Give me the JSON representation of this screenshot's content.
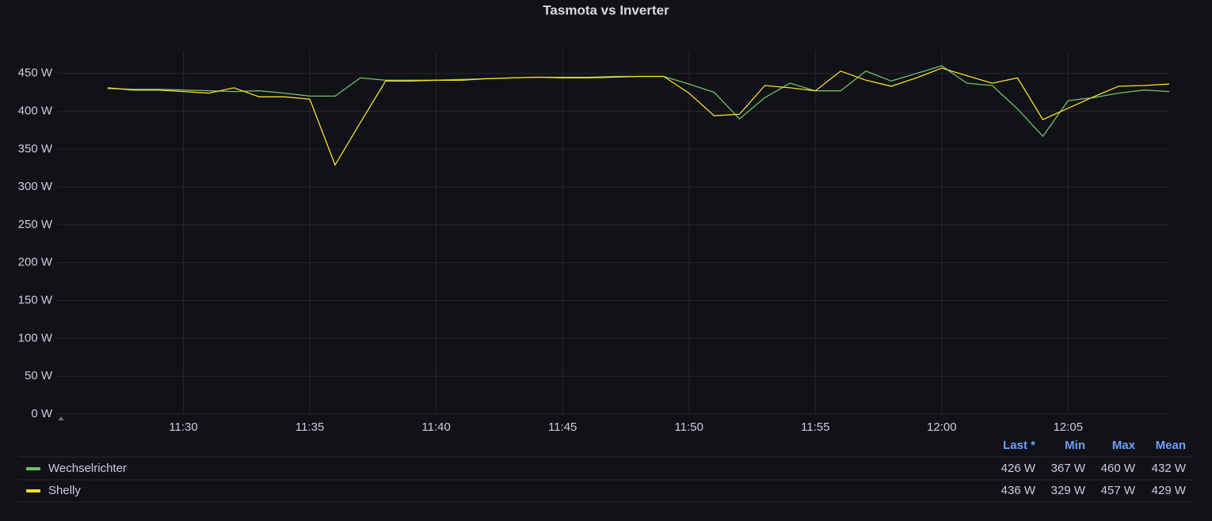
{
  "chart_data": {
    "type": "line",
    "title": "Tasmota vs Inverter",
    "x": [
      "11:27",
      "11:28",
      "11:29",
      "11:30",
      "11:31",
      "11:32",
      "11:33",
      "11:34",
      "11:35",
      "11:36",
      "11:37",
      "11:38",
      "11:39",
      "11:40",
      "11:41",
      "11:42",
      "11:43",
      "11:44",
      "11:45",
      "11:46",
      "11:47",
      "11:48",
      "11:49",
      "11:50",
      "11:51",
      "11:52",
      "11:53",
      "11:54",
      "11:55",
      "11:56",
      "11:57",
      "11:58",
      "11:59",
      "12:00",
      "12:01",
      "12:02",
      "12:03",
      "12:04",
      "12:05",
      "12:06",
      "12:07",
      "12:08",
      "12:09"
    ],
    "series": [
      {
        "name": "Wechselrichter",
        "color": "#73bf69",
        "values": [
          430,
          429,
          429,
          428,
          427,
          426,
          427,
          424,
          420,
          420,
          444,
          441,
          441,
          441,
          442,
          443,
          444,
          445,
          445,
          445,
          446,
          446,
          446,
          436,
          425,
          390,
          418,
          437,
          427,
          427,
          453,
          440,
          450,
          460,
          437,
          434,
          403,
          367,
          414,
          418,
          424,
          428,
          426
        ]
      },
      {
        "name": "Shelly",
        "color": "#fade2a",
        "values": [
          431,
          428,
          428,
          426,
          424,
          431,
          419,
          419,
          416,
          329,
          385,
          440,
          440,
          441,
          441,
          443,
          444,
          445,
          444,
          444,
          445,
          446,
          446,
          424,
          394,
          396,
          434,
          431,
          427,
          453,
          441,
          433,
          444,
          457,
          447,
          437,
          444,
          389,
          404,
          419,
          433,
          434,
          436
        ]
      }
    ],
    "xlim": [
      "11:25",
      "12:09"
    ],
    "xticks": [
      "11:30",
      "11:35",
      "11:40",
      "11:45",
      "11:50",
      "11:55",
      "12:00",
      "12:05"
    ],
    "ylim": [
      0,
      480
    ],
    "yticks": [
      {
        "value": 0,
        "label": "0 W"
      },
      {
        "value": 50,
        "label": "50 W"
      },
      {
        "value": 100,
        "label": "100 W"
      },
      {
        "value": 150,
        "label": "150 W"
      },
      {
        "value": 200,
        "label": "200 W"
      },
      {
        "value": 250,
        "label": "250 W"
      },
      {
        "value": 300,
        "label": "300 W"
      },
      {
        "value": 350,
        "label": "350 W"
      },
      {
        "value": 400,
        "label": "400 W"
      },
      {
        "value": 450,
        "label": "450 W"
      }
    ],
    "grid": true,
    "legend": {
      "columns": [
        "Last *",
        "Min",
        "Max",
        "Mean"
      ],
      "rows": [
        [
          "426 W",
          "367 W",
          "460 W",
          "432 W"
        ],
        [
          "436 W",
          "329 W",
          "457 W",
          "429 W"
        ]
      ]
    }
  }
}
